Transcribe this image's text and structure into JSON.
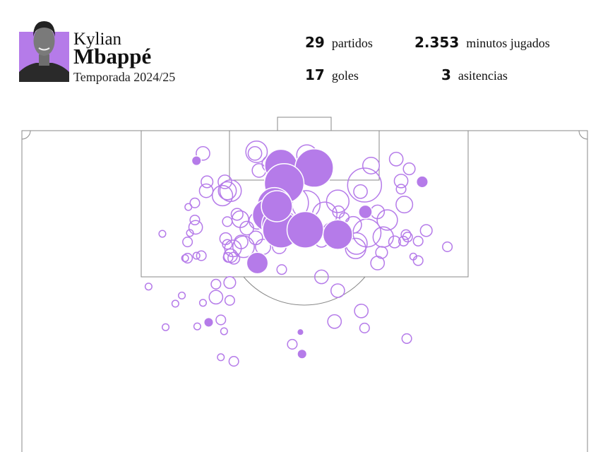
{
  "player": {
    "first_name": "Kylian",
    "last_name": "Mbappé",
    "season": "Temporada 2024/25",
    "photo_bg": "#b57be9"
  },
  "stats": [
    {
      "value": "29",
      "label": "partidos"
    },
    {
      "value": "2.353",
      "label": "minutos jugados"
    },
    {
      "value": "17",
      "label": "goles"
    },
    {
      "value": "3",
      "label": "asitencias"
    }
  ],
  "chart_data": {
    "type": "scatter",
    "description_units": {
      "x": "meters from left touchline",
      "y": "meters from goal line",
      "size": "xG"
    },
    "colors": {
      "goal": "#b57be9",
      "shot": "#b57be9",
      "lines": "#888888"
    },
    "goals": [
      {
        "x": 21.5,
        "y": 3.7,
        "xg": 0.02
      },
      {
        "x": 31.9,
        "y": 4.3,
        "xg": 0.23
      },
      {
        "x": 36.0,
        "y": 4.6,
        "xg": 0.32
      },
      {
        "x": 32.3,
        "y": 6.5,
        "xg": 0.34
      },
      {
        "x": 49.3,
        "y": 6.3,
        "xg": 0.03
      },
      {
        "x": 31.1,
        "y": 9.1,
        "xg": 0.25
      },
      {
        "x": 42.3,
        "y": 10.0,
        "xg": 0.04
      },
      {
        "x": 30.4,
        "y": 10.4,
        "xg": 0.23
      },
      {
        "x": 31.7,
        "y": 11.6,
        "xg": 0.27
      },
      {
        "x": 31.9,
        "y": 12.2,
        "xg": 0.29
      },
      {
        "x": 34.9,
        "y": 12.2,
        "xg": 0.29
      },
      {
        "x": 38.9,
        "y": 12.8,
        "xg": 0.19
      },
      {
        "x": 29.0,
        "y": 16.3,
        "xg": 0.1
      },
      {
        "x": 23.0,
        "y": 23.6,
        "xg": 0.02
      },
      {
        "x": 34.3,
        "y": 24.8,
        "xg": 0.01
      },
      {
        "x": 34.5,
        "y": 27.5,
        "xg": 0.02
      },
      {
        "x": 31.4,
        "y": 9.3,
        "xg": 0.21
      }
    ],
    "shots": [
      {
        "x": 22.3,
        "y": 2.8,
        "xg": 0.04
      },
      {
        "x": 28.9,
        "y": 2.6,
        "xg": 0.1
      },
      {
        "x": 28.7,
        "y": 2.8,
        "xg": 0.04
      },
      {
        "x": 35.1,
        "y": 3.0,
        "xg": 0.09
      },
      {
        "x": 29.2,
        "y": 4.9,
        "xg": 0.04
      },
      {
        "x": 30.6,
        "y": 4.1,
        "xg": 0.06
      },
      {
        "x": 43.0,
        "y": 4.3,
        "xg": 0.06
      },
      {
        "x": 46.1,
        "y": 3.5,
        "xg": 0.04
      },
      {
        "x": 47.7,
        "y": 4.7,
        "xg": 0.03
      },
      {
        "x": 22.8,
        "y": 6.3,
        "xg": 0.03
      },
      {
        "x": 22.7,
        "y": 7.4,
        "xg": 0.04
      },
      {
        "x": 25.0,
        "y": 6.3,
        "xg": 0.04
      },
      {
        "x": 25.3,
        "y": 7.4,
        "xg": 0.07
      },
      {
        "x": 25.7,
        "y": 7.4,
        "xg": 0.1
      },
      {
        "x": 24.7,
        "y": 8.0,
        "xg": 0.09
      },
      {
        "x": 42.2,
        "y": 6.7,
        "xg": 0.25
      },
      {
        "x": 41.7,
        "y": 7.5,
        "xg": 0.04
      },
      {
        "x": 46.7,
        "y": 6.2,
        "xg": 0.04
      },
      {
        "x": 46.7,
        "y": 7.2,
        "xg": 0.02
      },
      {
        "x": 38.9,
        "y": 8.7,
        "xg": 0.11
      },
      {
        "x": 35.0,
        "y": 9.1,
        "xg": 0.17
      },
      {
        "x": 33.2,
        "y": 8.9,
        "xg": 0.25
      },
      {
        "x": 47.1,
        "y": 9.1,
        "xg": 0.06
      },
      {
        "x": 20.5,
        "y": 9.4,
        "xg": 0.01
      },
      {
        "x": 21.3,
        "y": 8.9,
        "xg": 0.02
      },
      {
        "x": 26.5,
        "y": 10.3,
        "xg": 0.03
      },
      {
        "x": 26.9,
        "y": 10.9,
        "xg": 0.06
      },
      {
        "x": 25.3,
        "y": 11.2,
        "xg": 0.02
      },
      {
        "x": 27.7,
        "y": 12.0,
        "xg": 0.04
      },
      {
        "x": 29.0,
        "y": 11.1,
        "xg": 0.06
      },
      {
        "x": 39.0,
        "y": 10.0,
        "xg": 0.03
      },
      {
        "x": 37.3,
        "y": 10.3,
        "xg": 0.13
      },
      {
        "x": 39.7,
        "y": 10.7,
        "xg": 0.02
      },
      {
        "x": 43.8,
        "y": 10.0,
        "xg": 0.04
      },
      {
        "x": 45.0,
        "y": 11.0,
        "xg": 0.09
      },
      {
        "x": 40.8,
        "y": 11.6,
        "xg": 0.06
      },
      {
        "x": 21.3,
        "y": 11.0,
        "xg": 0.02
      },
      {
        "x": 21.4,
        "y": 11.9,
        "xg": 0.04
      },
      {
        "x": 20.7,
        "y": 12.6,
        "xg": 0.01
      },
      {
        "x": 17.3,
        "y": 12.7,
        "xg": 0.01
      },
      {
        "x": 20.4,
        "y": 13.7,
        "xg": 0.02
      },
      {
        "x": 25.1,
        "y": 13.3,
        "xg": 0.03
      },
      {
        "x": 25.3,
        "y": 14.0,
        "xg": 0.02
      },
      {
        "x": 27.0,
        "y": 13.7,
        "xg": 0.04
      },
      {
        "x": 26.0,
        "y": 14.5,
        "xg": 0.06
      },
      {
        "x": 25.7,
        "y": 15.4,
        "xg": 0.04
      },
      {
        "x": 27.3,
        "y": 14.3,
        "xg": 0.1
      },
      {
        "x": 28.8,
        "y": 13.2,
        "xg": 0.04
      },
      {
        "x": 29.7,
        "y": 14.3,
        "xg": 0.05
      },
      {
        "x": 31.7,
        "y": 14.3,
        "xg": 0.04
      },
      {
        "x": 36.9,
        "y": 13.5,
        "xg": 0.04
      },
      {
        "x": 41.2,
        "y": 13.9,
        "xg": 0.1
      },
      {
        "x": 42.5,
        "y": 12.6,
        "xg": 0.17
      },
      {
        "x": 44.5,
        "y": 13.1,
        "xg": 0.09
      },
      {
        "x": 47.0,
        "y": 13.6,
        "xg": 0.02
      },
      {
        "x": 47.5,
        "y": 13.1,
        "xg": 0.02
      },
      {
        "x": 47.3,
        "y": 12.8,
        "xg": 0.02
      },
      {
        "x": 45.9,
        "y": 13.7,
        "xg": 0.03
      },
      {
        "x": 48.8,
        "y": 13.6,
        "xg": 0.02
      },
      {
        "x": 49.8,
        "y": 12.3,
        "xg": 0.03
      },
      {
        "x": 52.4,
        "y": 14.3,
        "xg": 0.02
      },
      {
        "x": 44.3,
        "y": 15.0,
        "xg": 0.03
      },
      {
        "x": 41.1,
        "y": 14.5,
        "xg": 0.09
      },
      {
        "x": 38.0,
        "y": 12.2,
        "xg": 0.04
      },
      {
        "x": 22.1,
        "y": 15.4,
        "xg": 0.02
      },
      {
        "x": 21.5,
        "y": 15.4,
        "xg": 0.01
      },
      {
        "x": 20.1,
        "y": 15.7,
        "xg": 0.01
      },
      {
        "x": 20.4,
        "y": 15.7,
        "xg": 0.02
      },
      {
        "x": 25.4,
        "y": 15.6,
        "xg": 0.02
      },
      {
        "x": 26.1,
        "y": 15.7,
        "xg": 0.03
      },
      {
        "x": 43.8,
        "y": 16.3,
        "xg": 0.04
      },
      {
        "x": 48.2,
        "y": 15.5,
        "xg": 0.01
      },
      {
        "x": 48.8,
        "y": 16.0,
        "xg": 0.02
      },
      {
        "x": 32.0,
        "y": 17.1,
        "xg": 0.02
      },
      {
        "x": 36.9,
        "y": 18.0,
        "xg": 0.04
      },
      {
        "x": 38.9,
        "y": 19.7,
        "xg": 0.04
      },
      {
        "x": 25.6,
        "y": 18.7,
        "xg": 0.03
      },
      {
        "x": 23.9,
        "y": 18.9,
        "xg": 0.02
      },
      {
        "x": 23.9,
        "y": 20.5,
        "xg": 0.04
      },
      {
        "x": 15.6,
        "y": 19.2,
        "xg": 0.01
      },
      {
        "x": 19.7,
        "y": 20.3,
        "xg": 0.01
      },
      {
        "x": 18.9,
        "y": 21.3,
        "xg": 0.01
      },
      {
        "x": 22.3,
        "y": 21.2,
        "xg": 0.01
      },
      {
        "x": 25.6,
        "y": 20.9,
        "xg": 0.02
      },
      {
        "x": 41.8,
        "y": 22.2,
        "xg": 0.04
      },
      {
        "x": 38.5,
        "y": 23.5,
        "xg": 0.04
      },
      {
        "x": 24.5,
        "y": 23.3,
        "xg": 0.02
      },
      {
        "x": 21.6,
        "y": 24.1,
        "xg": 0.01
      },
      {
        "x": 24.9,
        "y": 24.7,
        "xg": 0.01
      },
      {
        "x": 17.7,
        "y": 24.2,
        "xg": 0.01
      },
      {
        "x": 42.2,
        "y": 24.3,
        "xg": 0.02
      },
      {
        "x": 47.4,
        "y": 25.6,
        "xg": 0.02
      },
      {
        "x": 33.3,
        "y": 26.3,
        "xg": 0.02
      },
      {
        "x": 24.5,
        "y": 27.9,
        "xg": 0.01
      },
      {
        "x": 26.1,
        "y": 28.4,
        "xg": 0.02
      }
    ]
  }
}
